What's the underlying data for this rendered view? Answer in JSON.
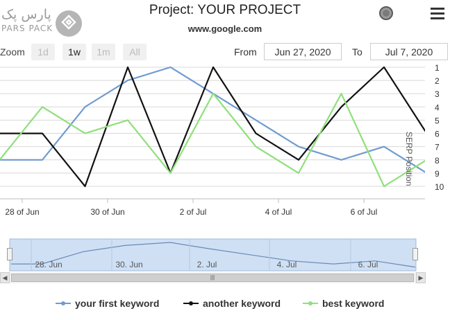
{
  "header": {
    "title": "Project: YOUR PROJECT",
    "subtitle": "www.google.com",
    "logo_text_fa": "پارس پک",
    "logo_text_en": "PARS PACK"
  },
  "toolbar": {
    "zoom_label": "Zoom",
    "zoom_buttons": [
      "1d",
      "1w",
      "1m",
      "All"
    ],
    "zoom_active": "1w",
    "from_label": "From",
    "from_value": "Jun 27, 2020",
    "to_label": "To",
    "to_value": "Jul 7, 2020"
  },
  "colors": {
    "series1": "#6f9bd1",
    "series2": "#111111",
    "series3": "#8fe07a",
    "grid": "#d8d8d8",
    "navigator_fill": "#cfe0f5"
  },
  "chart_data": {
    "type": "line",
    "ylabel": "SERP Position",
    "y_reversed": true,
    "ylim": [
      1,
      10
    ],
    "y_ticks": [
      1,
      2,
      3,
      4,
      5,
      6,
      7,
      8,
      9,
      10
    ],
    "x_ticks": [
      "28 of Jun",
      "30 of Jun",
      "2 of Jul",
      "4 of Jul",
      "6 of Jul"
    ],
    "x": [
      "2020-06-27",
      "2020-06-28",
      "2020-06-29",
      "2020-06-30",
      "2020-07-01",
      "2020-07-02",
      "2020-07-03",
      "2020-07-04",
      "2020-07-05",
      "2020-07-06",
      "2020-07-07",
      "2020-07-08"
    ],
    "series": [
      {
        "name": "your first keyword",
        "values": [
          8,
          8,
          4,
          2,
          1,
          3,
          5,
          7,
          8,
          7,
          9,
          9
        ]
      },
      {
        "name": "another keyword",
        "values": [
          6,
          6,
          10,
          1,
          9,
          1,
          6,
          8,
          4,
          1,
          6,
          6
        ]
      },
      {
        "name": "best keyword",
        "values": [
          8,
          4,
          6,
          5,
          9,
          3,
          7,
          9,
          3,
          10,
          8,
          8
        ]
      }
    ],
    "navigator": {
      "labels": [
        "28. Jun",
        "30. Jun",
        "2. Jul",
        "4. Jul",
        "6. Jul"
      ]
    }
  }
}
